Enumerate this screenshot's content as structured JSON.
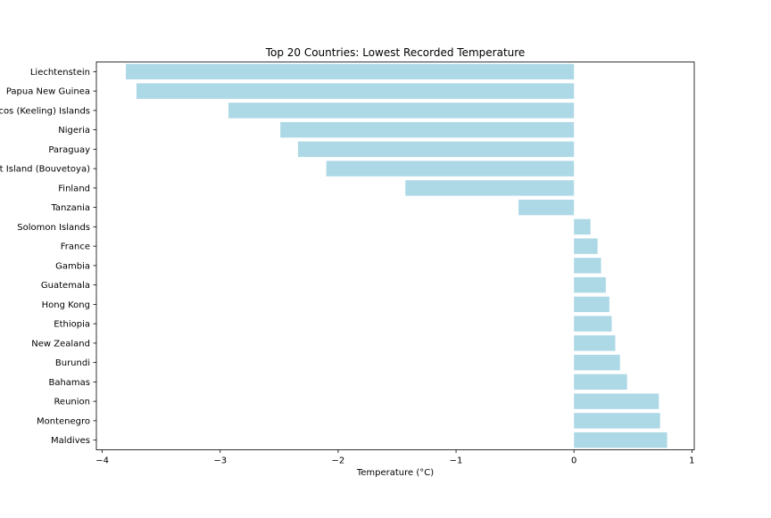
{
  "chart_data": {
    "type": "bar",
    "orientation": "horizontal",
    "title": "Top 20 Countries: Lowest Recorded Temperature",
    "xlabel": "Temperature (°C)",
    "ylabel": "",
    "xlim": [
      -4.05,
      1.02
    ],
    "xticks": [
      -4,
      -3,
      -2,
      -1,
      0,
      1
    ],
    "xtick_labels": [
      "−4",
      "−3",
      "−2",
      "−1",
      "0",
      "1"
    ],
    "grid": false,
    "bar_color": "#add8e6",
    "categories": [
      "Liechtenstein",
      "Papua New Guinea",
      "Cocos (Keeling) Islands",
      "Nigeria",
      "Paraguay",
      "Bouvet Island (Bouvetoya)",
      "Finland",
      "Tanzania",
      "Solomon Islands",
      "France",
      "Gambia",
      "Guatemala",
      "Hong Kong",
      "Ethiopia",
      "New Zealand",
      "Burundi",
      "Bahamas",
      "Reunion",
      "Montenegro",
      "Maldives"
    ],
    "values": [
      -3.8,
      -3.71,
      -2.93,
      -2.49,
      -2.34,
      -2.1,
      -1.43,
      -0.47,
      0.14,
      0.2,
      0.23,
      0.27,
      0.3,
      0.32,
      0.35,
      0.39,
      0.45,
      0.72,
      0.73,
      0.79
    ]
  }
}
